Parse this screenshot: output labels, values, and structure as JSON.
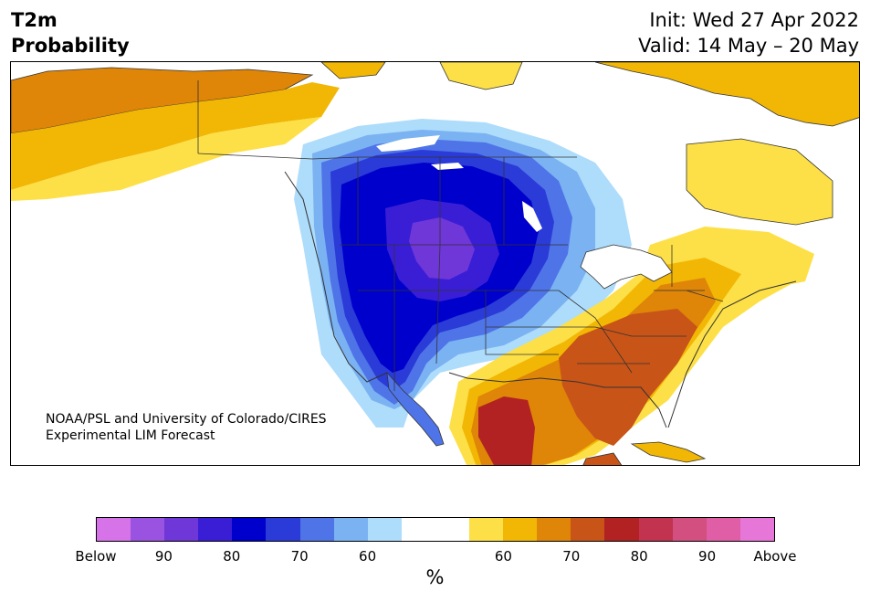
{
  "header": {
    "title_line1": "T2m",
    "title_line2": "Probability",
    "init": "Init: Wed 27 Apr 2022",
    "valid": "Valid: 14 May – 20 May"
  },
  "map": {
    "credit_line1": "NOAA/PSL and University of Colorado/CIRES",
    "credit_line2": "Experimental LIM Forecast"
  },
  "colorbar": {
    "colors": [
      "#d773e8",
      "#9a52e0",
      "#6f36d8",
      "#3a1ed6",
      "#0000cc",
      "#2a3bd8",
      "#4f74e8",
      "#7ab2f2",
      "#aedcfb",
      "#ffffff",
      "#ffffff",
      "#fde047",
      "#f2b705",
      "#df8508",
      "#c85418",
      "#b22222",
      "#c23350",
      "#d24f80",
      "#df5ea6",
      "#e677d8"
    ],
    "ticks": [
      "Below",
      "90",
      "80",
      "70",
      "60",
      "60",
      "70",
      "80",
      "90",
      "Above"
    ],
    "unit": "%"
  }
}
